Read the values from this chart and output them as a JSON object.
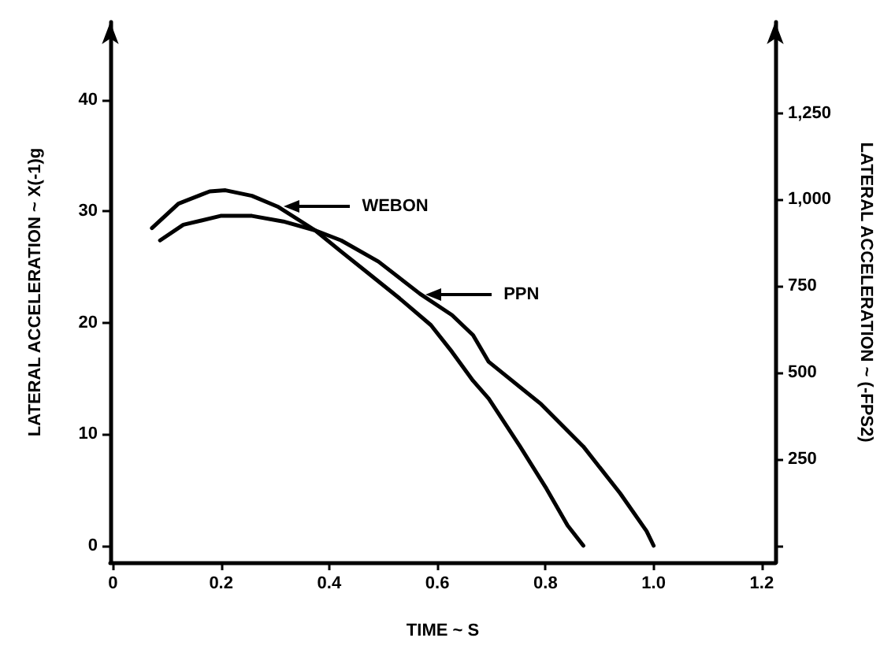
{
  "chart_data": {
    "type": "line",
    "xlabel": "TIME ~ S",
    "ylabel": "LATERAL ACCELERATION ~ X(-1)g",
    "y2label": "LATERAL ACCELERATION ~ (-FPS2)",
    "xlim": [
      -0.005,
      1.225
    ],
    "xticks": [
      0,
      0.2,
      0.4,
      0.6,
      0.8,
      {
        "value": 1.0,
        "label": "1.0"
      },
      1.2
    ],
    "ylim": [
      -1.5,
      47
    ],
    "yticks": [
      0,
      10,
      20,
      30,
      40
    ],
    "y2lim": [
      -48,
      1513
    ],
    "y2ticks": [
      {
        "value": 0,
        "label": null
      },
      250,
      500,
      750,
      {
        "value": 1000,
        "label": "1,000"
      },
      {
        "value": 1250,
        "label": "1,250"
      }
    ],
    "grid": false,
    "legend": "top",
    "marker": "none",
    "line_style": "solid",
    "series": [
      {
        "name": "WEBON",
        "color": "#000000",
        "x": [
          0.072,
          0.121,
          0.179,
          0.208,
          0.257,
          0.306,
          0.374,
          0.422,
          0.471,
          0.53,
          0.588,
          0.627,
          0.666,
          0.695,
          0.753,
          0.802,
          0.841,
          0.87
        ],
        "values": [
          28.5,
          30.7,
          31.8,
          31.9,
          31.4,
          30.4,
          28.3,
          26.4,
          24.5,
          22.2,
          19.8,
          17.4,
          14.8,
          13.2,
          8.9,
          5.1,
          1.8,
          0
        ]
      },
      {
        "name": "PPN",
        "color": "#000000",
        "x": [
          0.087,
          0.13,
          0.199,
          0.257,
          0.315,
          0.374,
          0.422,
          0.491,
          0.568,
          0.627,
          0.666,
          0.695,
          0.792,
          0.87,
          0.938,
          0.987,
          1.0
        ],
        "values": [
          27.4,
          28.8,
          29.6,
          29.6,
          29.1,
          28.3,
          27.4,
          25.5,
          22.6,
          20.7,
          18.9,
          16.5,
          12.7,
          8.9,
          4.7,
          1.3,
          0
        ]
      }
    ]
  }
}
